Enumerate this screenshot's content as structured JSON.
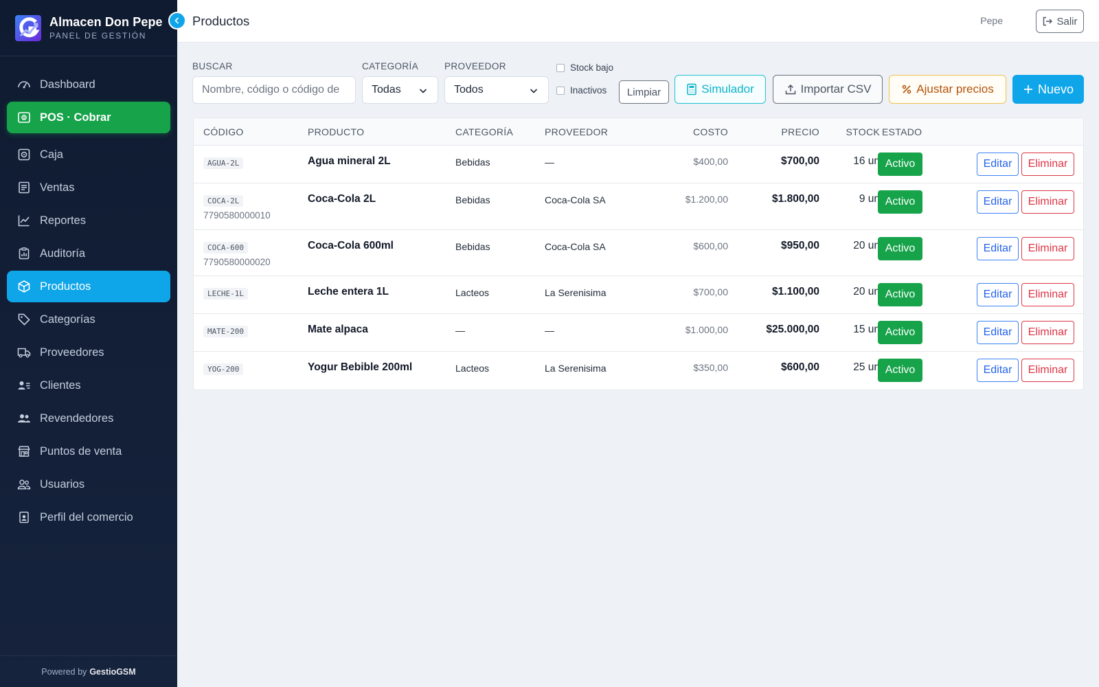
{
  "brand": {
    "name": "Almacen Don Pepe",
    "subtitle": "PANEL DE GESTIÓN"
  },
  "sidebar": {
    "items": [
      {
        "label": "Dashboard",
        "icon": "gauge-icon"
      },
      {
        "label": "POS · Cobrar",
        "icon": "cash-register-icon"
      },
      {
        "label": "Caja",
        "icon": "safe-icon"
      },
      {
        "label": "Ventas",
        "icon": "receipt-icon"
      },
      {
        "label": "Reportes",
        "icon": "chart-line-icon"
      },
      {
        "label": "Auditoría",
        "icon": "clipboard-chart-icon"
      },
      {
        "label": "Productos",
        "icon": "box-icon"
      },
      {
        "label": "Categorías",
        "icon": "tags-icon"
      },
      {
        "label": "Proveedores",
        "icon": "truck-icon"
      },
      {
        "label": "Clientes",
        "icon": "person-lines-icon"
      },
      {
        "label": "Revendedores",
        "icon": "people-icon"
      },
      {
        "label": "Puntos de venta",
        "icon": "shop-icon"
      },
      {
        "label": "Usuarios",
        "icon": "users-icon"
      },
      {
        "label": "Perfil del comercio",
        "icon": "badge-icon"
      }
    ],
    "active": "Productos",
    "footer_prefix": "Powered by",
    "footer_brand": "GestioGSM"
  },
  "header": {
    "title": "Productos",
    "user": "Pepe",
    "logout_label": "Salir"
  },
  "filters": {
    "search_label": "BUSCAR",
    "search_placeholder": "Nombre, código o código de",
    "category_label": "CATEGORÍA",
    "category_value": "Todas",
    "supplier_label": "PROVEEDOR",
    "supplier_value": "Todos",
    "low_stock_label": "Stock bajo",
    "inactive_label": "Inactivos",
    "clear_label": "Limpiar"
  },
  "actions": {
    "simulator": "Simulador",
    "import_csv": "Importar CSV",
    "adjust_prices": "Ajustar precios",
    "new": "Nuevo"
  },
  "table": {
    "headers": {
      "code": "CÓDIGO",
      "product": "PRODUCTO",
      "category": "CATEGORÍA",
      "supplier": "PROVEEDOR",
      "cost": "COSTO",
      "price": "PRECIO",
      "stock": "STOCK",
      "status": "ESTADO"
    },
    "edit_label": "Editar",
    "delete_label": "Eliminar",
    "rows": [
      {
        "code": "AGUA-2L",
        "barcode": "",
        "name": "Agua mineral 2L",
        "category": "Bebidas",
        "supplier": "—",
        "cost": "$400,00",
        "price": "$700,00",
        "stock": "16 un",
        "status": "Activo"
      },
      {
        "code": "COCA-2L",
        "barcode": "7790580000010",
        "name": "Coca-Cola 2L",
        "category": "Bebidas",
        "supplier": "Coca-Cola SA",
        "cost": "$1.200,00",
        "price": "$1.800,00",
        "stock": "9 un",
        "status": "Activo"
      },
      {
        "code": "COCA-600",
        "barcode": "7790580000020",
        "name": "Coca-Cola 600ml",
        "category": "Bebidas",
        "supplier": "Coca-Cola SA",
        "cost": "$600,00",
        "price": "$950,00",
        "stock": "20 un",
        "status": "Activo"
      },
      {
        "code": "LECHE-1L",
        "barcode": "",
        "name": "Leche entera 1L",
        "category": "Lacteos",
        "supplier": "La Serenisima",
        "cost": "$700,00",
        "price": "$1.100,00",
        "stock": "20 un",
        "status": "Activo"
      },
      {
        "code": "MATE-200",
        "barcode": "",
        "name": "Mate alpaca",
        "category": "—",
        "supplier": "—",
        "cost": "$1.000,00",
        "price": "$25.000,00",
        "stock": "15 un",
        "status": "Activo"
      },
      {
        "code": "YOG-200",
        "barcode": "",
        "name": "Yogur Bebible 200ml",
        "category": "Lacteos",
        "supplier": "La Serenisima",
        "cost": "$350,00",
        "price": "$600,00",
        "stock": "25 un",
        "status": "Activo"
      }
    ]
  },
  "colors": {
    "accent": "#0ea5e9",
    "pos": "#16a34a",
    "danger": "#dc3545",
    "sidebar": "#0f1b30"
  }
}
